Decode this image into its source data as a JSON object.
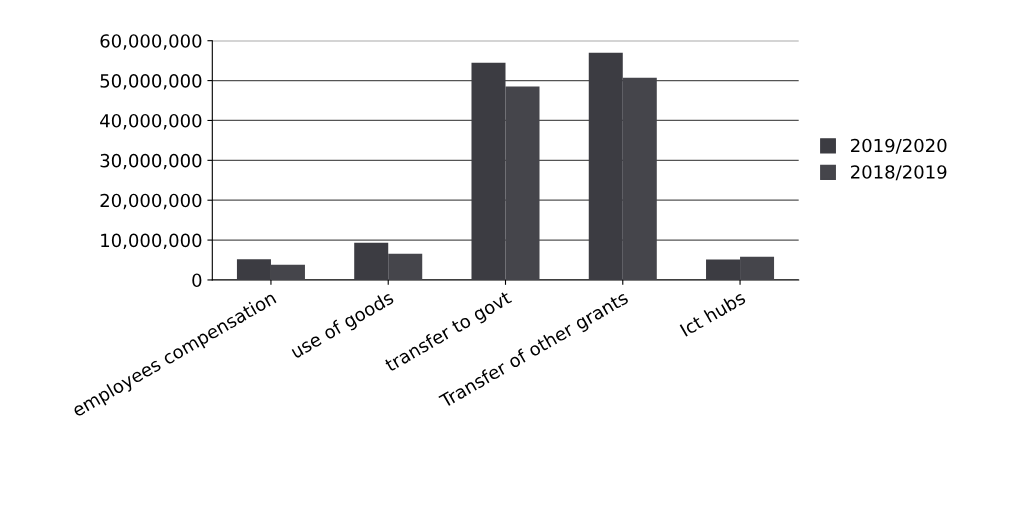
{
  "chart_data": {
    "type": "bar",
    "categories": [
      "employees compensation",
      "use of goods",
      "transfer to govt",
      "Transfer of other grants",
      "Ict hubs"
    ],
    "series": [
      {
        "name": "2019/2020",
        "color": "#3c3c42",
        "values": [
          5200000,
          9300000,
          54500000,
          57000000,
          5100000
        ]
      },
      {
        "name": "2018/2019",
        "color": "#45454b",
        "values": [
          3800000,
          6600000,
          48500000,
          50700000,
          5800000
        ]
      }
    ],
    "ylim": [
      0,
      60000000
    ],
    "yticks": [
      {
        "value": 0,
        "label": "0"
      },
      {
        "value": 10000000,
        "label": "10,000,000"
      },
      {
        "value": 20000000,
        "label": "20,000,000"
      },
      {
        "value": 30000000,
        "label": "30,000,000"
      },
      {
        "value": 40000000,
        "label": "40,000,000"
      },
      {
        "value": 50000000,
        "label": "50,000,000"
      },
      {
        "value": 60000000,
        "label": "60,000,000"
      }
    ],
    "grid": "y",
    "legend": "right"
  }
}
